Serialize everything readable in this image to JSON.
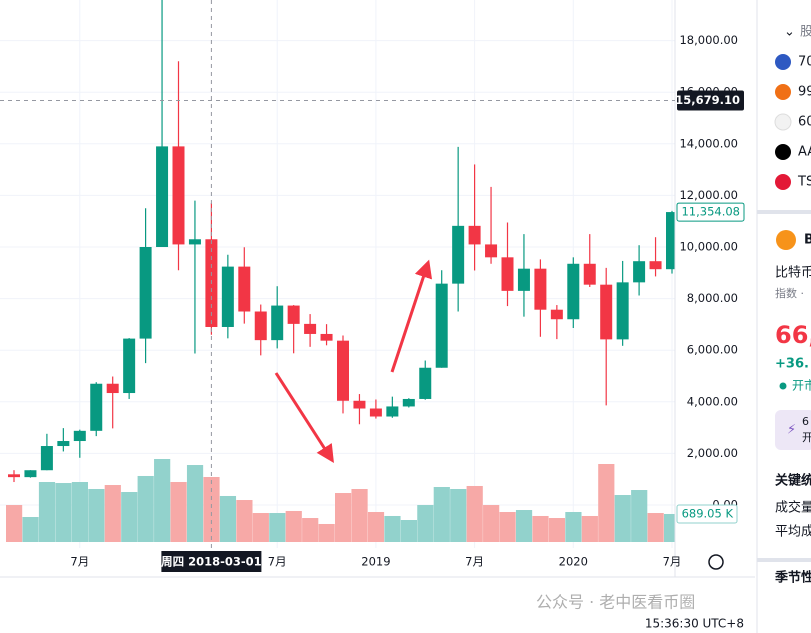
{
  "watchlist": {
    "group": "股",
    "items": [
      "70",
      "99",
      "60",
      "AA",
      "TS"
    ]
  },
  "symbol": {
    "name": "B",
    "full_name": "比特币",
    "kind": "指数 ·",
    "price": "66,",
    "change": "+36.",
    "status": "开市",
    "promo": [
      "6",
      "开"
    ]
  },
  "stats": {
    "title": "关键统",
    "rows": [
      "成交量",
      "平均成"
    ]
  },
  "seasonal": "季节性",
  "clock": "15:36:30 UTC+8",
  "watermark": "公众号 · 老中医看币圈",
  "chart_data": {
    "type": "candlestick",
    "categories": [
      null,
      null,
      null,
      null,
      "7月",
      null,
      null,
      null,
      null,
      null,
      null,
      null,
      null,
      null,
      null,
      null,
      "7月",
      null,
      null,
      null,
      null,
      null,
      "2019",
      null,
      null,
      null,
      null,
      null,
      "7月",
      null,
      null,
      null,
      null,
      null,
      "2020",
      null,
      null,
      null,
      null,
      null,
      "7月"
    ],
    "open": [
      1190,
      1080,
      1348,
      2286,
      2480,
      2875,
      4700,
      4340,
      6450,
      10000,
      13900,
      10100,
      10300,
      6900,
      9240,
      7500,
      6390,
      7730,
      7020,
      6630,
      6370,
      4040,
      3740,
      3430,
      3820,
      4110,
      5320,
      8580,
      10820,
      10100,
      9600,
      8300,
      9160,
      7570,
      7200,
      9350,
      8540,
      6420,
      8630,
      9450,
      9140
    ],
    "high": [
      1350,
      1350,
      2760,
      2980,
      2920,
      4760,
      4980,
      6470,
      11500,
      19800,
      17200,
      11800,
      11700,
      9700,
      9990,
      7770,
      8480,
      7750,
      7400,
      7010,
      6570,
      4300,
      4090,
      4200,
      4140,
      5600,
      9100,
      13880,
      13200,
      12330,
      10950,
      10500,
      9520,
      7750,
      9600,
      10500,
      9190,
      9460,
      10070,
      10380,
      11400
    ],
    "low": [
      890,
      1060,
      1348,
      2076,
      1830,
      2670,
      2970,
      4110,
      5500,
      10000,
      9100,
      5870,
      6600,
      6460,
      7030,
      5800,
      6070,
      5880,
      6130,
      6190,
      3550,
      3130,
      3350,
      3380,
      3780,
      4080,
      5320,
      7500,
      9090,
      9350,
      7710,
      7300,
      6520,
      6430,
      6860,
      8450,
      3860,
      6170,
      8120,
      8860,
      8970
    ],
    "close": [
      1080,
      1348,
      2286,
      2480,
      2875,
      4700,
      4340,
      6450,
      10000,
      13900,
      10100,
      10300,
      6900,
      9240,
      7500,
      6390,
      7730,
      7020,
      6630,
      6370,
      4040,
      3740,
      3430,
      3820,
      4110,
      5320,
      8580,
      10820,
      10100,
      9600,
      8300,
      9160,
      7570,
      7200,
      9350,
      8540,
      6420,
      8630,
      9450,
      9140,
      11354.08
    ],
    "volume": [
      910,
      615,
      1476,
      1451,
      1476,
      1304,
      1402,
      1230,
      1624,
      2042,
      1476,
      1894,
      1599,
      1132,
      1033,
      713,
      713,
      763,
      590,
      443,
      1205,
      1304,
      738,
      640,
      541,
      910,
      1353,
      1304,
      1378,
      910,
      738,
      787,
      640,
      590,
      738,
      640,
      1919,
      1156,
      1279,
      713,
      689.05
    ],
    "last_price_label": "11,354.08",
    "volume_label": "689.05 K",
    "crosshair": {
      "x_category_index": 12,
      "x_label": "周四 2018-03-01",
      "y": {
        "value": 15679.1,
        "label": "15,679.10"
      }
    },
    "ylim": [
      -1434,
      19574
    ],
    "yticks": [
      {
        "value": 0,
        "label": "0.00"
      },
      {
        "value": 2000,
        "label": "2,000.00"
      },
      {
        "value": 4000,
        "label": "4,000.00"
      },
      {
        "value": 6000,
        "label": "6,000.00"
      },
      {
        "value": 8000,
        "label": "8,000.00"
      },
      {
        "value": 10000,
        "label": "10,000.00"
      },
      {
        "value": 12000,
        "label": "12,000.00"
      },
      {
        "value": 14000,
        "label": "14,000.00"
      },
      {
        "value": 16000,
        "label": "16,000.00"
      },
      {
        "value": 18000,
        "label": "18,000.00"
      }
    ],
    "grid": true,
    "up_color": "#089981",
    "down_color": "#f23645",
    "volume_up_color": "#92d2cc",
    "volume_down_color": "#f7a9a7"
  }
}
